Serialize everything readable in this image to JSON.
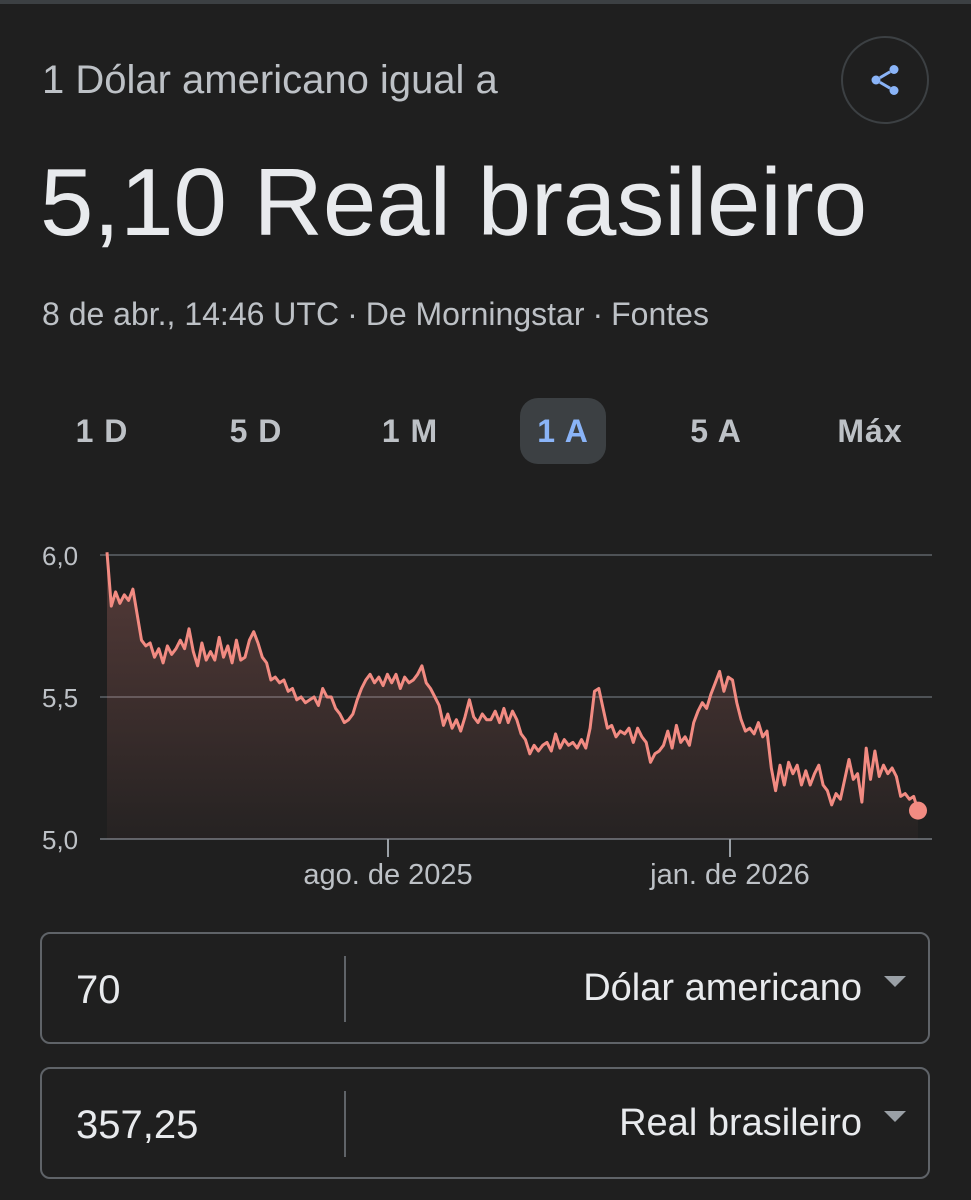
{
  "header": {
    "subtitle": "1 Dólar americano igual a",
    "result": "5,10 Real brasileiro",
    "timestamp": "8 de abr., 14:46 UTC",
    "separator": "·",
    "source": "De Morningstar",
    "sources_link": "Fontes",
    "share_icon": "share-icon"
  },
  "tabs": [
    {
      "label": "1 D",
      "active": false
    },
    {
      "label": "5 D",
      "active": false
    },
    {
      "label": "1 M",
      "active": false
    },
    {
      "label": "1 A",
      "active": true
    },
    {
      "label": "5 A",
      "active": false
    },
    {
      "label": "Máx",
      "active": false
    }
  ],
  "chart_data": {
    "type": "line",
    "y_ticks": [
      "6,0",
      "5,5",
      "5,0"
    ],
    "ylim": [
      5.0,
      6.0
    ],
    "x_tick_labels": [
      "ago. de 2025",
      "jan. de 2026"
    ],
    "series": [
      {
        "color": "#f28b82",
        "values": [
          6.01,
          5.82,
          5.87,
          5.83,
          5.86,
          5.84,
          5.88,
          5.79,
          5.7,
          5.68,
          5.69,
          5.64,
          5.67,
          5.62,
          5.68,
          5.65,
          5.67,
          5.7,
          5.67,
          5.74,
          5.66,
          5.61,
          5.69,
          5.63,
          5.66,
          5.63,
          5.71,
          5.64,
          5.68,
          5.62,
          5.7,
          5.63,
          5.64,
          5.7,
          5.73,
          5.69,
          5.64,
          5.62,
          5.56,
          5.57,
          5.55,
          5.56,
          5.52,
          5.53,
          5.49,
          5.5,
          5.48,
          5.49,
          5.5,
          5.47,
          5.53,
          5.5,
          5.5,
          5.46,
          5.44,
          5.41,
          5.42,
          5.44,
          5.49,
          5.53,
          5.56,
          5.58,
          5.55,
          5.57,
          5.54,
          5.58,
          5.55,
          5.58,
          5.53,
          5.57,
          5.55,
          5.56,
          5.58,
          5.61,
          5.55,
          5.53,
          5.5,
          5.47,
          5.4,
          5.44,
          5.39,
          5.42,
          5.38,
          5.43,
          5.49,
          5.43,
          5.41,
          5.44,
          5.42,
          5.42,
          5.45,
          5.41,
          5.46,
          5.41,
          5.45,
          5.42,
          5.37,
          5.35,
          5.3,
          5.33,
          5.31,
          5.33,
          5.34,
          5.31,
          5.37,
          5.32,
          5.35,
          5.33,
          5.34,
          5.32,
          5.35,
          5.32,
          5.39,
          5.52,
          5.53,
          5.46,
          5.39,
          5.4,
          5.36,
          5.38,
          5.37,
          5.39,
          5.34,
          5.39,
          5.36,
          5.34,
          5.27,
          5.3,
          5.31,
          5.33,
          5.38,
          5.32,
          5.4,
          5.34,
          5.36,
          5.33,
          5.41,
          5.45,
          5.48,
          5.46,
          5.51,
          5.55,
          5.59,
          5.52,
          5.57,
          5.56,
          5.48,
          5.42,
          5.38,
          5.39,
          5.37,
          5.41,
          5.36,
          5.38,
          5.25,
          5.17,
          5.26,
          5.19,
          5.27,
          5.23,
          5.26,
          5.19,
          5.24,
          5.19,
          5.23,
          5.26,
          5.19,
          5.17,
          5.12,
          5.16,
          5.14,
          5.21,
          5.28,
          5.21,
          5.23,
          5.13,
          5.32,
          5.21,
          5.31,
          5.22,
          5.26,
          5.23,
          5.25,
          5.22,
          5.15,
          5.16,
          5.14,
          5.15,
          5.1
        ]
      }
    ],
    "grid": true
  },
  "converter": {
    "from": {
      "value": "70",
      "unit": "Dólar americano"
    },
    "to": {
      "value": "357,25",
      "unit": "Real brasileiro"
    },
    "caret_icon": "chevron-down-icon"
  }
}
